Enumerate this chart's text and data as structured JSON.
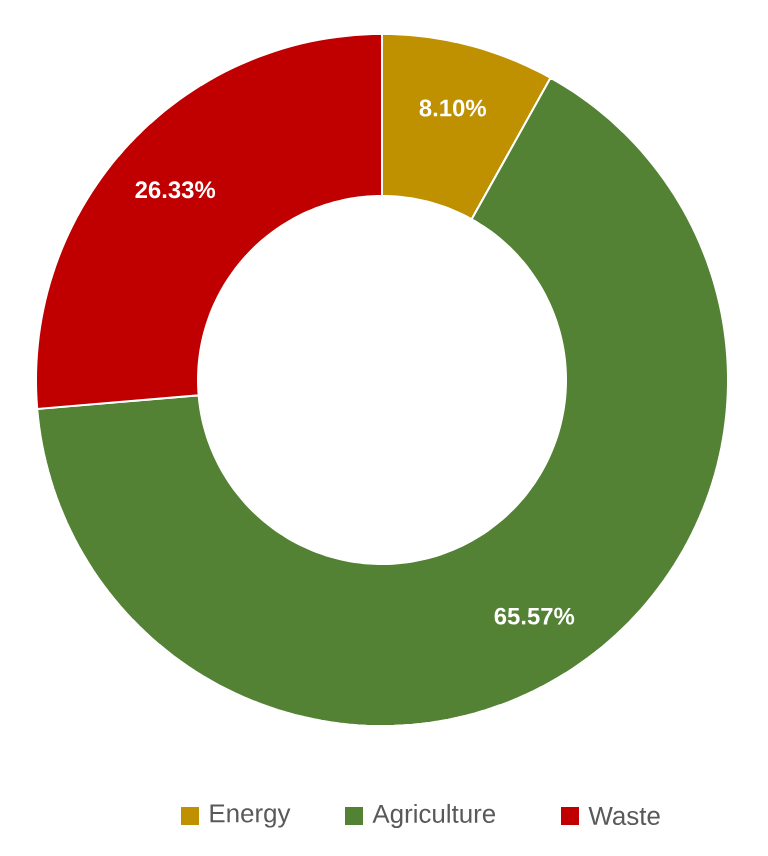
{
  "chart_data": {
    "type": "donut",
    "categories": [
      "Energy",
      "Agriculture",
      "Waste"
    ],
    "values": [
      8.1,
      65.57,
      26.33
    ],
    "colors": [
      "#bf9000",
      "#548235",
      "#c00000"
    ],
    "value_labels": [
      "8.10%",
      "65.57%",
      "26.33%"
    ],
    "legend": "bottom"
  }
}
